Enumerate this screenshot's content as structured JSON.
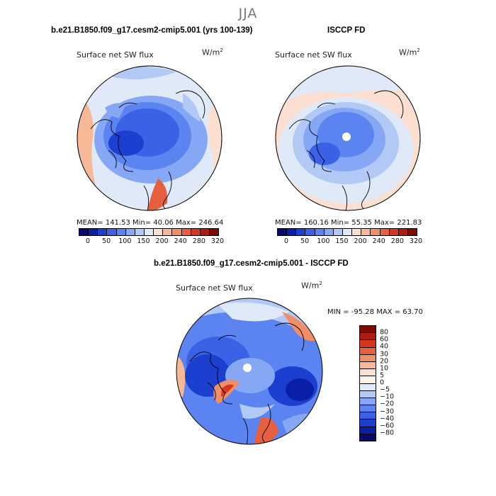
{
  "season": "JJA",
  "panel_left": {
    "title": "b.e21.B1850.f09_g17.cesm2-cmip5.001 (yrs 100-139)",
    "field_label": "Surface net SW flux",
    "units_base": "W/m",
    "units_exp": "2",
    "stats": "MEAN=  141.53   Min=    40.06   Max=  246.64"
  },
  "panel_right": {
    "title": "ISCCP FD",
    "field_label": "Surface net SW flux",
    "units_base": "W/m",
    "units_exp": "2",
    "stats": "MEAN=  160.16   Min=    55.35   Max=  221.83"
  },
  "panel_diff": {
    "title": "b.e21.B1850.f09_g17.cesm2-cmip5.001 - ISCCP FD",
    "field_label": "Surface net SW flux",
    "units_base": "W/m",
    "units_exp": "2",
    "stats": "MIN = -95.28  MAX =  63.70"
  },
  "colorbar_abs": {
    "colors": [
      "#08086e",
      "#0a1fa8",
      "#1d3fcf",
      "#3a61e6",
      "#5c84f0",
      "#86a7f4",
      "#b2c9f6",
      "#dfe9f8",
      "#fbe0d2",
      "#f6b896",
      "#f08e68",
      "#e6603f",
      "#d4361f",
      "#b01c10",
      "#7f0a04"
    ],
    "tick_labels": [
      "0",
      "50",
      "100",
      "150",
      "200",
      "240",
      "280",
      "320"
    ]
  },
  "colorbar_diff": {
    "colors": [
      "#7f0a04",
      "#b01c10",
      "#d4361f",
      "#e6603f",
      "#f08e68",
      "#f6b896",
      "#fbe0d2",
      "#fdf2ea",
      "#dfe9f8",
      "#b2c9f6",
      "#86a7f4",
      "#5c84f0",
      "#3a61e6",
      "#1d3fcf",
      "#0a1fa8",
      "#08086e"
    ],
    "tick_labels": [
      "80",
      "60",
      "40",
      "30",
      "20",
      "10",
      "5",
      "0",
      "−5",
      "−10",
      "−20",
      "−30",
      "−40",
      "−60",
      "−80"
    ]
  }
}
